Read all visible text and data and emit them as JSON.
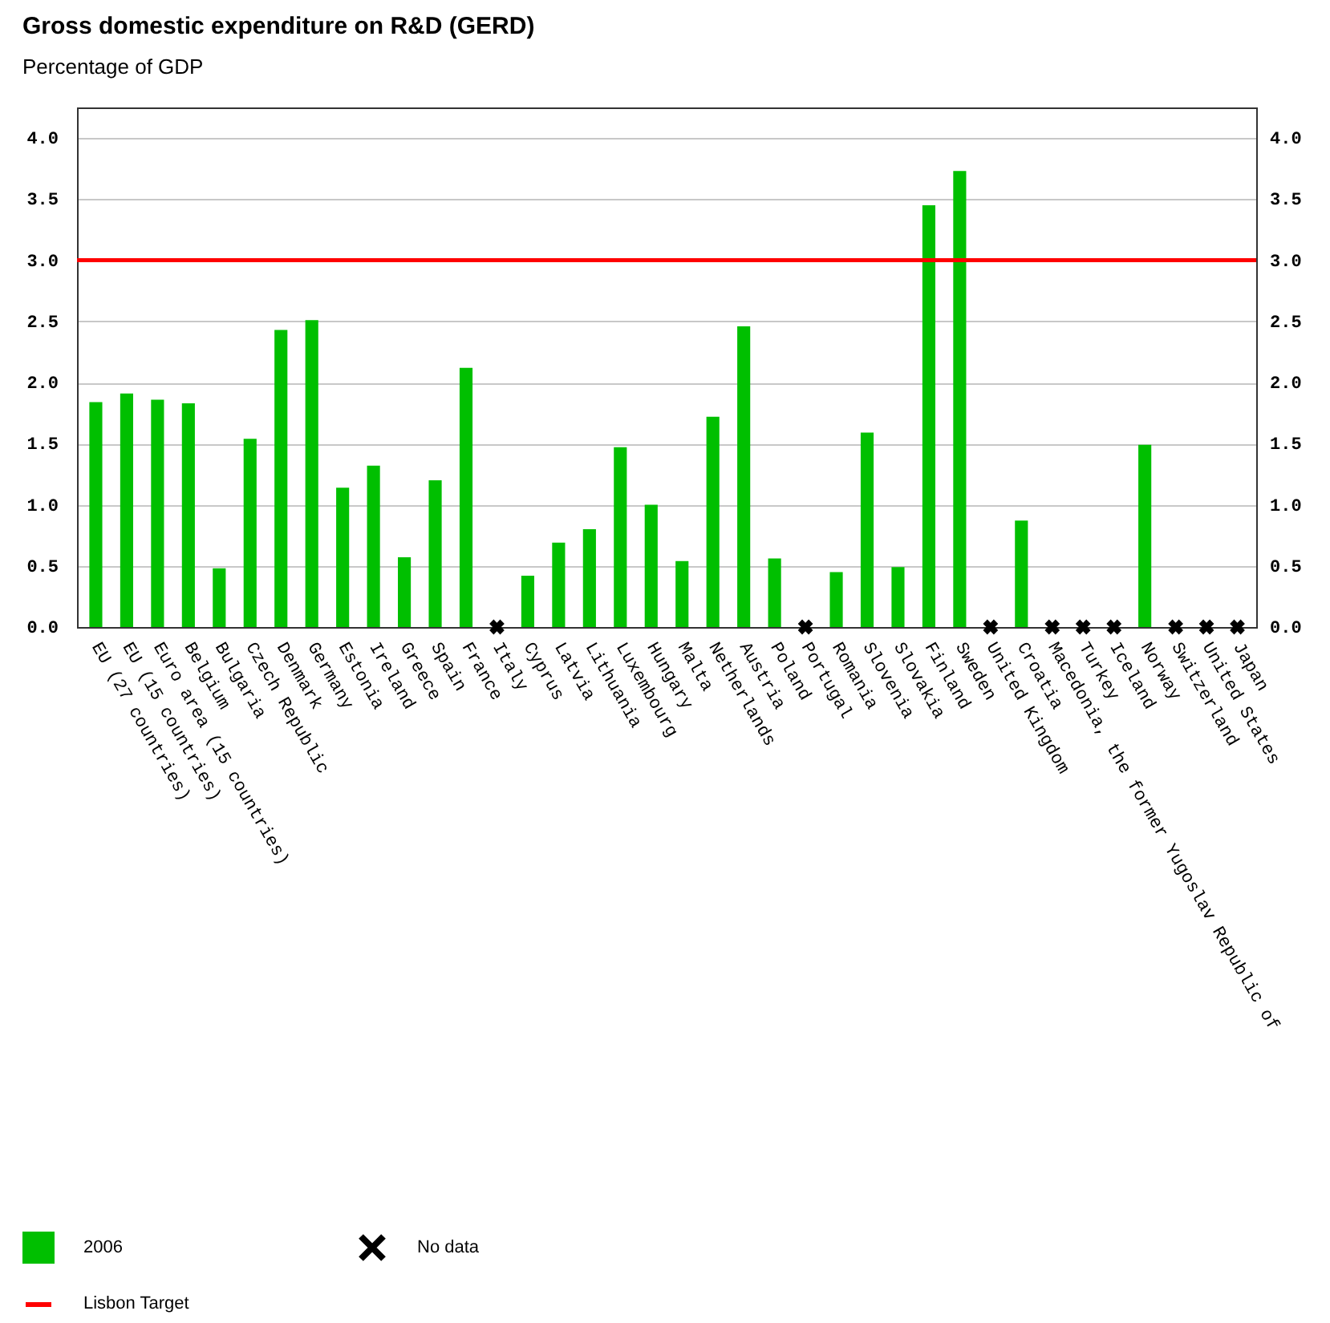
{
  "chart_data": {
    "type": "bar",
    "title": "Gross domestic expenditure on R&D (GERD)",
    "subtitle": "Percentage of GDP",
    "categories": [
      "EU (27 countries)",
      "EU (15 countries)",
      "Euro area (15 countries)",
      "Belgium",
      "Bulgaria",
      "Czech Republic",
      "Denmark",
      "Germany",
      "Estonia",
      "Ireland",
      "Greece",
      "Spain",
      "France",
      "Italy",
      "Cyprus",
      "Latvia",
      "Lithuania",
      "Luxembourg",
      "Hungary",
      "Malta",
      "Netherlands",
      "Austria",
      "Poland",
      "Portugal",
      "Romania",
      "Slovenia",
      "Slovakia",
      "Finland",
      "Sweden",
      "United Kingdom",
      "Croatia",
      "Macedonia, the former Yugoslav Republic of",
      "Turkey",
      "Iceland",
      "Norway",
      "Switzerland",
      "United States",
      "Japan"
    ],
    "series": [
      {
        "name": "2006",
        "color": "#00bf00",
        "values": [
          1.84,
          1.91,
          1.86,
          1.83,
          0.48,
          1.54,
          2.43,
          2.51,
          1.14,
          1.32,
          0.57,
          1.2,
          2.12,
          null,
          0.42,
          0.69,
          0.8,
          1.47,
          1.0,
          0.54,
          1.72,
          2.46,
          0.56,
          null,
          0.45,
          1.59,
          0.49,
          3.45,
          3.73,
          null,
          0.87,
          null,
          null,
          null,
          1.49,
          null,
          null,
          null
        ]
      },
      {
        "name": "No data",
        "type": "scatter",
        "marker": "cross",
        "color": "#000000",
        "x": [
          "Italy",
          "Portugal",
          "United Kingdom",
          "Macedonia, the former Yugoslav Republic of",
          "Turkey",
          "Iceland",
          "Switzerland",
          "United States",
          "Japan"
        ],
        "values": [
          0,
          0,
          0,
          0,
          0,
          0,
          0,
          0,
          0
        ]
      }
    ],
    "ylim": [
      0,
      4.25
    ],
    "yticks": [
      {
        "value": 0,
        "label": "0.0"
      },
      {
        "value": 0.5,
        "label": "0.5"
      },
      {
        "value": 1,
        "label": "1.0"
      },
      {
        "value": 1.5,
        "label": "1.5"
      },
      {
        "value": 2,
        "label": "2.0"
      },
      {
        "value": 2.5,
        "label": "2.5"
      },
      {
        "value": 3,
        "label": "3.0"
      },
      {
        "value": 3.5,
        "label": "3.5"
      },
      {
        "value": 4,
        "label": "4.0"
      }
    ],
    "y2lim": [
      0,
      4.25
    ],
    "y2ticks": [
      {
        "value": 0,
        "label": "0.0"
      },
      {
        "value": 0.5,
        "label": "0.5"
      },
      {
        "value": 1,
        "label": "1.0"
      },
      {
        "value": 1.5,
        "label": "1.5"
      },
      {
        "value": 2,
        "label": "2.0"
      },
      {
        "value": 2.5,
        "label": "2.5"
      },
      {
        "value": 3,
        "label": "3.0"
      },
      {
        "value": 3.5,
        "label": "3.5"
      },
      {
        "value": 4,
        "label": "4.0"
      }
    ],
    "ref_lines": [
      {
        "axis": "y",
        "value": 3,
        "label": "Lisbon Target",
        "color": "#ff0000"
      }
    ],
    "grid": "y",
    "legend": "bottom left"
  }
}
